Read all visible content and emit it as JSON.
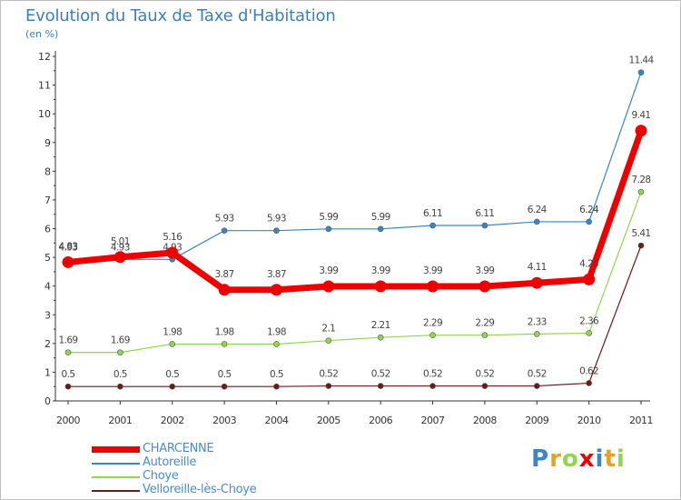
{
  "chart_data": {
    "type": "line",
    "title": "Evolution du Taux de Taxe d'Habitation",
    "subtitle": "(en %)",
    "xlabel": "",
    "ylabel": "(en %)",
    "categories": [
      "2000",
      "2001",
      "2002",
      "2003",
      "2004",
      "2005",
      "2006",
      "2007",
      "2008",
      "2009",
      "2010",
      "2011"
    ],
    "ylim": [
      0,
      12
    ],
    "yticks": [
      "0",
      "1",
      "2",
      "3",
      "4",
      "5",
      "6",
      "7",
      "8",
      "9",
      "10",
      "11",
      "12"
    ],
    "grid": false,
    "legend_position": "bottom-left",
    "series": [
      {
        "name": "CHARCENNE",
        "color": "#ee0000",
        "labels": [
          "4.83",
          "5.01",
          "5.16",
          "3.87",
          "3.87",
          "3.99",
          "3.99",
          "3.99",
          "3.99",
          "4.11",
          "4.23",
          "9.41"
        ],
        "values": [
          4.83,
          5.01,
          5.16,
          3.87,
          3.87,
          3.99,
          3.99,
          3.99,
          3.99,
          4.11,
          4.23,
          9.41
        ]
      },
      {
        "name": "Autoreille",
        "color": "#3a85c8",
        "labels": [
          "4.93",
          "4.93",
          "4.93",
          "5.93",
          "5.93",
          "5.99",
          "5.99",
          "6.11",
          "6.11",
          "6.24",
          "6.24",
          "11.44"
        ],
        "values": [
          4.93,
          4.93,
          4.93,
          5.93,
          5.93,
          5.99,
          5.99,
          6.11,
          6.11,
          6.24,
          6.24,
          11.44
        ]
      },
      {
        "name": "Choye",
        "color": "#8fd64f",
        "labels": [
          "1.69",
          "1.69",
          "1.98",
          "1.98",
          "1.98",
          "2.1",
          "2.21",
          "2.29",
          "2.29",
          "2.33",
          "2.36",
          "7.28"
        ],
        "values": [
          1.69,
          1.69,
          1.98,
          1.98,
          1.98,
          2.1,
          2.21,
          2.29,
          2.29,
          2.33,
          2.36,
          7.28
        ]
      },
      {
        "name": "Velloreille-lès-Choye",
        "color": "#6b1a1a",
        "labels": [
          "0.5",
          "0.5",
          "0.5",
          "0.5",
          "0.5",
          "0.52",
          "0.52",
          "0.52",
          "0.52",
          "0.52",
          "0.62",
          "5.41"
        ],
        "values": [
          0.5,
          0.5,
          0.5,
          0.5,
          0.5,
          0.52,
          0.52,
          0.52,
          0.52,
          0.52,
          0.62,
          5.41
        ]
      }
    ]
  },
  "legend": {
    "items": [
      {
        "label": "CHARCENNE",
        "color": "#ee0000"
      },
      {
        "label": "Autoreille",
        "color": "#3a85c8"
      },
      {
        "label": "Choye",
        "color": "#8fd64f"
      },
      {
        "label": "Velloreille-lès-Choye",
        "color": "#6b1a1a"
      }
    ]
  },
  "logo": {
    "letters": [
      "P",
      "r",
      "o",
      "x",
      "i",
      "t",
      "i"
    ],
    "colors": [
      "#3a85c8",
      "#e8a020",
      "#8fd64f",
      "#ee0000",
      "#3a85c8",
      "#e8a020",
      "#8fd64f"
    ]
  }
}
